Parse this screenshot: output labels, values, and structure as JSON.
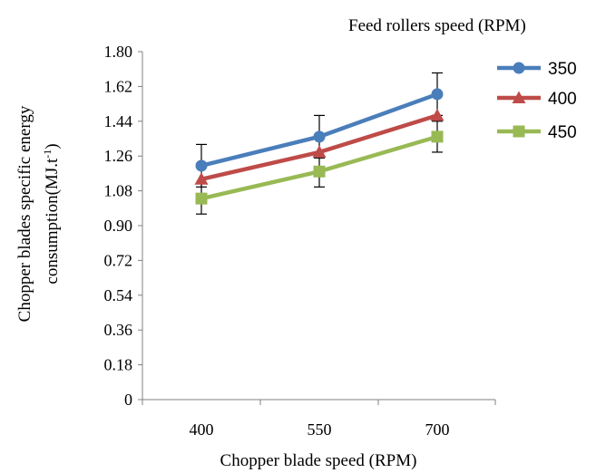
{
  "chart_data": {
    "type": "line",
    "title": "",
    "legend_title": "Feed rollers  speed (RPM)",
    "legend_position": "top-right",
    "xlabel": "Chopper blade speed (RPM)",
    "ylabel_line1": "Chopper blades specific energy",
    "ylabel_line2_main": "consumption(MJ.t",
    "ylabel_line2_sup": "-1",
    "ylabel_line2_close": ")",
    "categories": [
      "400",
      "550",
      "700"
    ],
    "ylim": [
      0,
      1.8
    ],
    "yticks": [
      0,
      0.18,
      0.36,
      0.54,
      0.72,
      0.9,
      1.08,
      1.26,
      1.44,
      1.62,
      1.8
    ],
    "ytick_labels": [
      "0",
      "0.18",
      "0.36",
      "0.54",
      "0.72",
      "0.90",
      "1.08",
      "1.26",
      "1.44",
      "1.62",
      "1.80"
    ],
    "grid": false,
    "series": [
      {
        "name": "350",
        "values": [
          1.21,
          1.36,
          1.58
        ],
        "color": "#4a7ebb",
        "marker": "circle",
        "error": [
          0.11,
          0.11,
          0.11
        ]
      },
      {
        "name": "400",
        "values": [
          1.14,
          1.28,
          1.47
        ],
        "color": "#be4b48",
        "marker": "triangle"
      },
      {
        "name": "450",
        "values": [
          1.04,
          1.18,
          1.36
        ],
        "color": "#98b954",
        "marker": "square",
        "error": [
          0.08,
          0.08,
          0.08
        ]
      }
    ]
  }
}
